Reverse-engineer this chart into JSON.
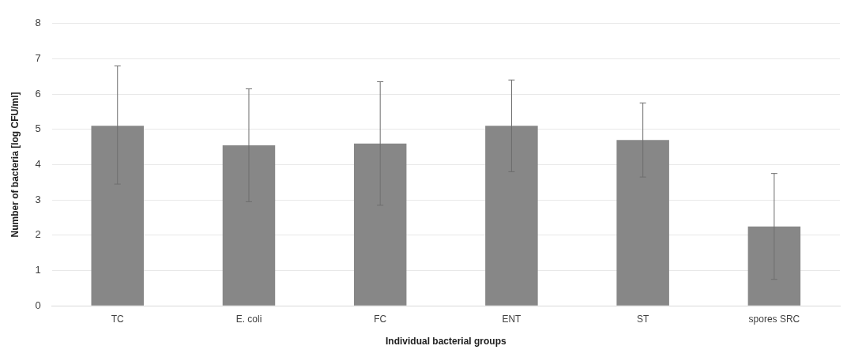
{
  "chart_data": {
    "type": "bar",
    "xlabel": "Individual bacterial groups",
    "ylabel": "Number of bacteria [log CFU/ml]",
    "categories": [
      "TC",
      "E. coli",
      "FC",
      "ENT",
      "ST",
      "spores SRC"
    ],
    "values": [
      5.1,
      4.55,
      4.6,
      5.1,
      4.7,
      2.25
    ],
    "errors": [
      [
        3.45,
        6.8
      ],
      [
        2.95,
        6.15
      ],
      [
        2.85,
        6.35
      ],
      [
        3.8,
        6.4
      ],
      [
        3.65,
        5.75
      ],
      [
        0.75,
        3.75
      ]
    ],
    "color": "#878787",
    "ylim": [
      0,
      8
    ],
    "yticks": [
      0,
      1,
      2,
      3,
      4,
      5,
      6,
      7,
      8
    ],
    "grid": "y",
    "legend": false
  }
}
